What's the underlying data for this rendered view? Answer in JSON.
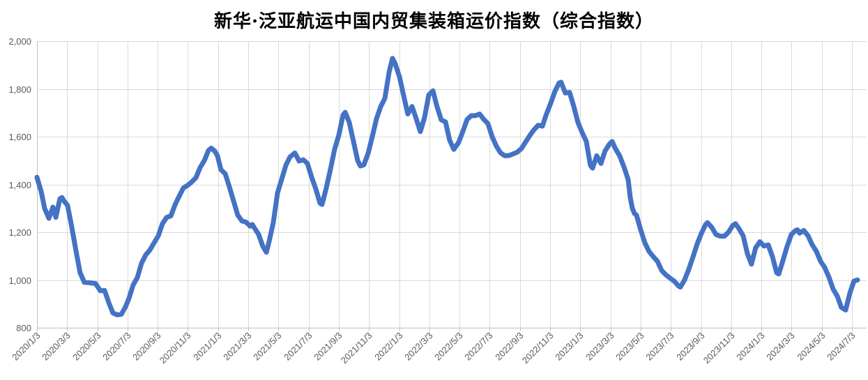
{
  "chart_data": {
    "type": "line",
    "title": "新华·泛亚航运中国内贸集装箱运价指数（综合指数）",
    "legend": "none",
    "grid": true,
    "line_color": "#4472C4",
    "line_width": 7,
    "grid_color": "#D9D9D9",
    "axis_color": "#BFBFBF",
    "label_color": "#595959",
    "y_axis": {
      "min": 800,
      "max": 2000,
      "step": 200,
      "tick_labels": [
        "800",
        "1,000",
        "1,200",
        "1,400",
        "1,600",
        "1,800",
        "2,000"
      ]
    },
    "x_axis": {
      "start_label": "2020/1/3",
      "months_per_tick": 2,
      "tick_labels": [
        "2020/1/3",
        "2020/3/3",
        "2020/5/3",
        "2020/7/3",
        "2020/9/3",
        "2020/11/3",
        "2021/1/3",
        "2021/3/3",
        "2021/5/3",
        "2021/7/3",
        "2021/9/3",
        "2021/11/3",
        "2022/1/3",
        "2022/3/3",
        "2022/5/3",
        "2022/7/3",
        "2022/9/3",
        "2022/11/3",
        "2023/1/3",
        "2023/3/3",
        "2023/5/3",
        "2023/7/3",
        "2023/9/3",
        "2023/11/3",
        "2024/1/3",
        "2024/3/3",
        "2024/5/3",
        "2024/7/3"
      ]
    },
    "points_x_unit": "months_since_2020_01_03",
    "points": [
      [
        0,
        1430
      ],
      [
        0.28,
        1370
      ],
      [
        0.51,
        1300
      ],
      [
        0.79,
        1258
      ],
      [
        1.06,
        1305
      ],
      [
        1.25,
        1262
      ],
      [
        1.52,
        1340
      ],
      [
        1.66,
        1345
      ],
      [
        1.8,
        1330
      ],
      [
        2.03,
        1312
      ],
      [
        2.31,
        1220
      ],
      [
        2.59,
        1120
      ],
      [
        2.86,
        1030
      ],
      [
        3.14,
        990
      ],
      [
        3.51,
        988
      ],
      [
        3.88,
        985
      ],
      [
        4.2,
        955
      ],
      [
        4.48,
        956
      ],
      [
        4.76,
        905
      ],
      [
        5.03,
        862
      ],
      [
        5.31,
        854
      ],
      [
        5.59,
        856
      ],
      [
        5.87,
        888
      ],
      [
        6.1,
        924
      ],
      [
        6.37,
        978
      ],
      [
        6.65,
        1010
      ],
      [
        6.93,
        1070
      ],
      [
        7.21,
        1105
      ],
      [
        7.48,
        1125
      ],
      [
        7.76,
        1155
      ],
      [
        8.04,
        1185
      ],
      [
        8.31,
        1235
      ],
      [
        8.59,
        1262
      ],
      [
        8.87,
        1268
      ],
      [
        9.15,
        1315
      ],
      [
        9.42,
        1350
      ],
      [
        9.7,
        1385
      ],
      [
        9.98,
        1396
      ],
      [
        10.25,
        1410
      ],
      [
        10.53,
        1428
      ],
      [
        10.81,
        1470
      ],
      [
        11.09,
        1500
      ],
      [
        11.36,
        1542
      ],
      [
        11.55,
        1552
      ],
      [
        11.78,
        1540
      ],
      [
        11.96,
        1520
      ],
      [
        12.19,
        1462
      ],
      [
        12.47,
        1445
      ],
      [
        12.75,
        1390
      ],
      [
        13.03,
        1330
      ],
      [
        13.3,
        1272
      ],
      [
        13.58,
        1247
      ],
      [
        13.86,
        1242
      ],
      [
        14.13,
        1225
      ],
      [
        14.27,
        1232
      ],
      [
        14.41,
        1218
      ],
      [
        14.69,
        1190
      ],
      [
        14.97,
        1140
      ],
      [
        15.2,
        1116
      ],
      [
        15.38,
        1160
      ],
      [
        15.66,
        1240
      ],
      [
        15.94,
        1365
      ],
      [
        16.21,
        1420
      ],
      [
        16.49,
        1480
      ],
      [
        16.77,
        1515
      ],
      [
        17.09,
        1532
      ],
      [
        17.37,
        1498
      ],
      [
        17.65,
        1503
      ],
      [
        17.92,
        1488
      ],
      [
        18.2,
        1430
      ],
      [
        18.48,
        1380
      ],
      [
        18.75,
        1322
      ],
      [
        18.89,
        1316
      ],
      [
        19.17,
        1385
      ],
      [
        19.45,
        1465
      ],
      [
        19.72,
        1547
      ],
      [
        20,
        1606
      ],
      [
        20.28,
        1690
      ],
      [
        20.42,
        1702
      ],
      [
        20.69,
        1660
      ],
      [
        20.97,
        1580
      ],
      [
        21.25,
        1500
      ],
      [
        21.43,
        1477
      ],
      [
        21.66,
        1482
      ],
      [
        21.94,
        1530
      ],
      [
        22.22,
        1600
      ],
      [
        22.49,
        1674
      ],
      [
        22.77,
        1725
      ],
      [
        23.05,
        1760
      ],
      [
        23.33,
        1870
      ],
      [
        23.56,
        1928
      ],
      [
        23.74,
        1905
      ],
      [
        24.02,
        1850
      ],
      [
        24.3,
        1770
      ],
      [
        24.57,
        1695
      ],
      [
        24.85,
        1726
      ],
      [
        25.13,
        1675
      ],
      [
        25.4,
        1621
      ],
      [
        25.68,
        1680
      ],
      [
        25.96,
        1775
      ],
      [
        26.24,
        1792
      ],
      [
        26.51,
        1725
      ],
      [
        26.79,
        1670
      ],
      [
        27.07,
        1662
      ],
      [
        27.34,
        1585
      ],
      [
        27.62,
        1547
      ],
      [
        27.94,
        1576
      ],
      [
        28.22,
        1622
      ],
      [
        28.5,
        1672
      ],
      [
        28.78,
        1688
      ],
      [
        29.05,
        1688
      ],
      [
        29.33,
        1695
      ],
      [
        29.61,
        1672
      ],
      [
        29.88,
        1655
      ],
      [
        30.16,
        1600
      ],
      [
        30.44,
        1560
      ],
      [
        30.72,
        1532
      ],
      [
        30.99,
        1520
      ],
      [
        31.27,
        1521
      ],
      [
        31.55,
        1528
      ],
      [
        31.82,
        1535
      ],
      [
        32.1,
        1550
      ],
      [
        32.38,
        1578
      ],
      [
        32.66,
        1605
      ],
      [
        32.93,
        1629
      ],
      [
        33.21,
        1648
      ],
      [
        33.49,
        1644
      ],
      [
        33.76,
        1695
      ],
      [
        34.04,
        1740
      ],
      [
        34.32,
        1790
      ],
      [
        34.6,
        1825
      ],
      [
        34.73,
        1828
      ],
      [
        35.01,
        1783
      ],
      [
        35.29,
        1785
      ],
      [
        35.57,
        1726
      ],
      [
        35.84,
        1660
      ],
      [
        36.12,
        1618
      ],
      [
        36.4,
        1580
      ],
      [
        36.67,
        1480
      ],
      [
        36.81,
        1468
      ],
      [
        37.09,
        1520
      ],
      [
        37.37,
        1488
      ],
      [
        37.64,
        1540
      ],
      [
        37.92,
        1568
      ],
      [
        38.11,
        1580
      ],
      [
        38.34,
        1548
      ],
      [
        38.61,
        1520
      ],
      [
        38.89,
        1474
      ],
      [
        39.17,
        1420
      ],
      [
        39.31,
        1345
      ],
      [
        39.45,
        1300
      ],
      [
        39.59,
        1278
      ],
      [
        39.72,
        1272
      ],
      [
        40,
        1210
      ],
      [
        40.28,
        1155
      ],
      [
        40.55,
        1120
      ],
      [
        40.83,
        1098
      ],
      [
        41.11,
        1078
      ],
      [
        41.39,
        1040
      ],
      [
        41.66,
        1022
      ],
      [
        41.94,
        1008
      ],
      [
        42.22,
        995
      ],
      [
        42.49,
        976
      ],
      [
        42.63,
        970
      ],
      [
        42.91,
        1000
      ],
      [
        43.19,
        1045
      ],
      [
        43.46,
        1095
      ],
      [
        43.74,
        1150
      ],
      [
        44.02,
        1195
      ],
      [
        44.3,
        1232
      ],
      [
        44.43,
        1240
      ],
      [
        44.71,
        1220
      ],
      [
        44.99,
        1190
      ],
      [
        45.27,
        1183
      ],
      [
        45.54,
        1183
      ],
      [
        45.82,
        1200
      ],
      [
        46.1,
        1228
      ],
      [
        46.28,
        1236
      ],
      [
        46.51,
        1215
      ],
      [
        46.79,
        1185
      ],
      [
        47.07,
        1110
      ],
      [
        47.34,
        1066
      ],
      [
        47.62,
        1135
      ],
      [
        47.9,
        1160
      ],
      [
        48.18,
        1142
      ],
      [
        48.45,
        1147
      ],
      [
        48.73,
        1098
      ],
      [
        49.01,
        1030
      ],
      [
        49.15,
        1025
      ],
      [
        49.42,
        1080
      ],
      [
        49.7,
        1140
      ],
      [
        49.98,
        1190
      ],
      [
        50.25,
        1206
      ],
      [
        50.39,
        1210
      ],
      [
        50.53,
        1196
      ],
      [
        50.81,
        1207
      ],
      [
        51.09,
        1185
      ],
      [
        51.36,
        1148
      ],
      [
        51.64,
        1120
      ],
      [
        51.92,
        1078
      ],
      [
        52.19,
        1053
      ],
      [
        52.47,
        1012
      ],
      [
        52.75,
        962
      ],
      [
        53.03,
        932
      ],
      [
        53.3,
        885
      ],
      [
        53.58,
        874
      ],
      [
        53.86,
        945
      ],
      [
        54.13,
        995
      ],
      [
        54.37,
        1000
      ]
    ]
  }
}
